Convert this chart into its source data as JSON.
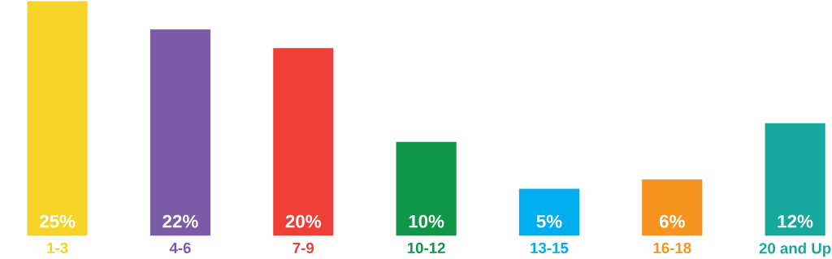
{
  "chart_data": {
    "type": "bar",
    "categories": [
      "1-3",
      "4-6",
      "7-9",
      "10-12",
      "13-15",
      "16-18",
      "20 and Up"
    ],
    "values": [
      25,
      22,
      20,
      10,
      5,
      6,
      12
    ],
    "colors": [
      "#f5d327",
      "#7b5aa6",
      "#ef3e36",
      "#0f9647",
      "#00aeef",
      "#f7941d",
      "#17a89d"
    ],
    "value_labels": [
      "25%",
      "22%",
      "20%",
      "10%",
      "5%",
      "6%",
      "12%"
    ]
  }
}
